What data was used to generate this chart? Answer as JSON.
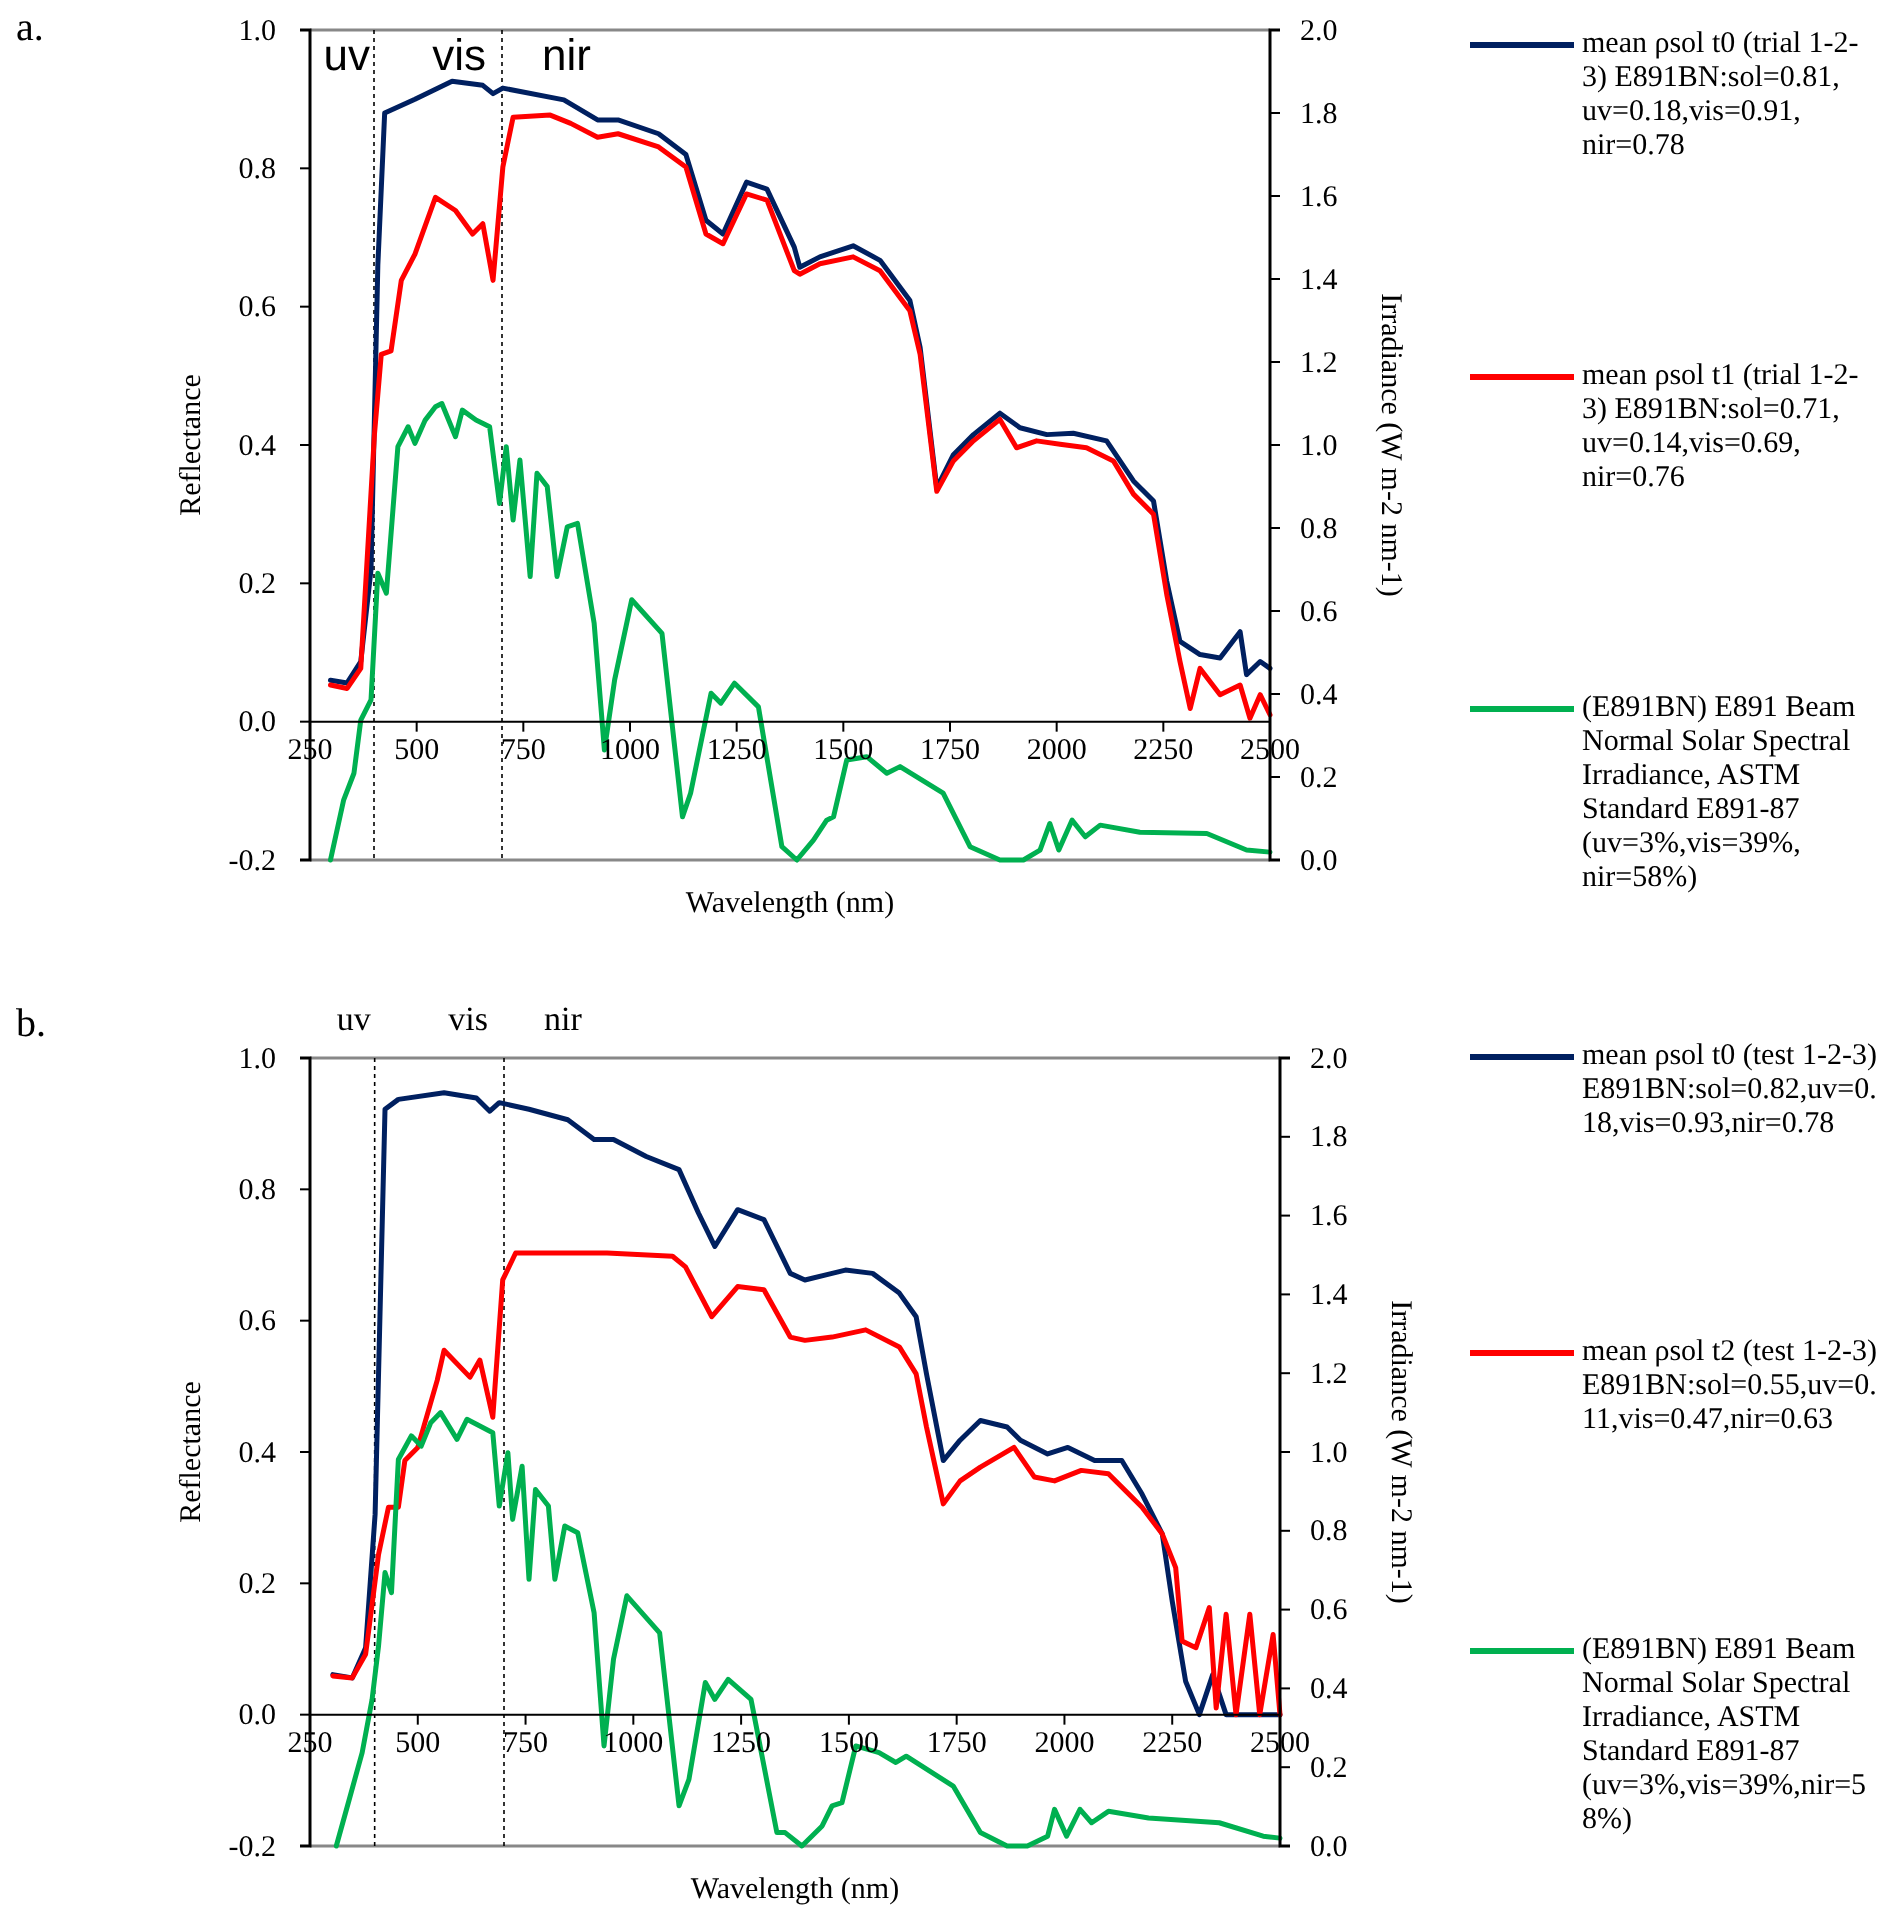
{
  "chart_data": [
    {
      "type": "line",
      "title": "a.",
      "xlabel": "Wavelength (nm)",
      "ylabel": "Reflectance",
      "y2label": "Irradiance (W m-2 nm-1)",
      "xlim": [
        250,
        2500
      ],
      "xticks": [
        250,
        500,
        750,
        1000,
        1250,
        1500,
        1750,
        2000,
        2250,
        2500
      ],
      "ylim": [
        -0.2,
        1.0
      ],
      "yticks": [
        {
          "value": -0.2,
          "label": "-0.2"
        },
        {
          "value": 0,
          "label": "0.0"
        },
        {
          "value": 0.2,
          "label": "0.2"
        },
        {
          "value": 0.4,
          "label": "0.4"
        },
        {
          "value": 0.6,
          "label": "0.6"
        },
        {
          "value": 0.8,
          "label": "0.8"
        },
        {
          "value": 1.0,
          "label": "1.0"
        }
      ],
      "y2lim": [
        0,
        2.0
      ],
      "y2ticks": [
        {
          "value": 0,
          "label": "0.0"
        },
        {
          "value": 0.2,
          "label": "0.2"
        },
        {
          "value": 0.4,
          "label": "0.4"
        },
        {
          "value": 0.6,
          "label": "0.6"
        },
        {
          "value": 0.8,
          "label": "0.8"
        },
        {
          "value": 1.0,
          "label": "1.0"
        },
        {
          "value": 1.2,
          "label": "1.2"
        },
        {
          "value": 1.4,
          "label": "1.4"
        },
        {
          "value": 1.6,
          "label": "1.6"
        },
        {
          "value": 1.8,
          "label": "1.8"
        },
        {
          "value": 2.0,
          "label": "2.0"
        }
      ],
      "grid": false,
      "legend": "right",
      "marker": "none",
      "line_style": "solid",
      "ref_lines": [
        {
          "axis": "x",
          "value": 400,
          "line_style": "dotted"
        },
        {
          "axis": "x",
          "value": 700,
          "line_style": "dotted"
        }
      ],
      "annotations": [
        "uv",
        "vis",
        "nir"
      ],
      "series": [
        {
          "name": "mean ρsol t0 (trial 1-2-3) E891BN:sol=0.81, uv=0.18,vis=0.91, nir=0.78",
          "color": "#002060",
          "x": [
            298,
            337,
            369,
            393,
            409,
            425,
            496,
            583,
            655,
            679,
            702,
            845,
            924,
            972,
            1067,
            1131,
            1178,
            1218,
            1273,
            1321,
            1385,
            1398,
            1445,
            1523,
            1586,
            1656,
            1680,
            1719,
            1758,
            1805,
            1867,
            1914,
            1977,
            2039,
            2117,
            2180,
            2227,
            2258,
            2289,
            2336,
            2383,
            2430,
            2445,
            2477,
            2500
          ],
          "values": [
            0.06,
            0.056,
            0.087,
            0.22,
            0.66,
            0.88,
            0.9,
            0.926,
            0.92,
            0.908,
            0.916,
            0.899,
            0.87,
            0.87,
            0.85,
            0.82,
            0.725,
            0.705,
            0.78,
            0.77,
            0.686,
            0.657,
            0.672,
            0.688,
            0.667,
            0.609,
            0.541,
            0.338,
            0.386,
            0.415,
            0.446,
            0.425,
            0.415,
            0.417,
            0.406,
            0.348,
            0.319,
            0.203,
            0.116,
            0.097,
            0.092,
            0.13,
            0.068,
            0.087,
            0.077
          ]
        },
        {
          "name": "mean ρsol t1 (trial 1-2-3) E891BN:sol=0.71, uv=0.14,vis=0.69, nir=0.76",
          "color": "#ff0000",
          "x": [
            298,
            337,
            369,
            401,
            417,
            440,
            464,
            496,
            544,
            591,
            631,
            655,
            679,
            702,
            726,
            813,
            861,
            924,
            972,
            1067,
            1131,
            1178,
            1218,
            1273,
            1321,
            1385,
            1398,
            1445,
            1523,
            1586,
            1656,
            1680,
            1719,
            1758,
            1805,
            1867,
            1906,
            1953,
            2008,
            2070,
            2133,
            2180,
            2227,
            2258,
            2289,
            2313,
            2336,
            2383,
            2430,
            2453,
            2477,
            2500
          ],
          "values": [
            0.053,
            0.048,
            0.077,
            0.415,
            0.531,
            0.536,
            0.638,
            0.676,
            0.758,
            0.739,
            0.705,
            0.72,
            0.638,
            0.802,
            0.874,
            0.877,
            0.865,
            0.845,
            0.85,
            0.831,
            0.802,
            0.705,
            0.691,
            0.763,
            0.754,
            0.652,
            0.647,
            0.662,
            0.672,
            0.652,
            0.594,
            0.531,
            0.333,
            0.377,
            0.406,
            0.437,
            0.396,
            0.406,
            0.401,
            0.396,
            0.377,
            0.329,
            0.3,
            0.184,
            0.087,
            0.019,
            0.077,
            0.039,
            0.053,
            0.005,
            0.039,
            0.01
          ]
        },
        {
          "name": "(E891BN) E891 Beam Normal Solar Spectral Irradiance, ASTM Standard E891-87 (uv=3%,vis=39%, nir=58%)",
          "color": "#00b050",
          "axis": "y2",
          "x": [
            298,
            329,
            353,
            369,
            393,
            409,
            429,
            456,
            480,
            496,
            520,
            544,
            559,
            591,
            607,
            639,
            671,
            694,
            710,
            726,
            742,
            766,
            782,
            806,
            829,
            853,
            877,
            916,
            940,
            964,
            1004,
            1075,
            1123,
            1142,
            1190,
            1213,
            1245,
            1301,
            1356,
            1391,
            1430,
            1461,
            1477,
            1508,
            1555,
            1602,
            1633,
            1734,
            1797,
            1867,
            1922,
            1961,
            1984,
            2005,
            2036,
            2067,
            2102,
            2195,
            2352,
            2445,
            2500
          ],
          "values": [
            0,
            0.145,
            0.209,
            0.337,
            0.386,
            0.691,
            0.643,
            0.996,
            1.044,
            1.004,
            1.06,
            1.092,
            1.1,
            1.02,
            1.084,
            1.06,
            1.044,
            0.859,
            0.996,
            0.819,
            0.964,
            0.683,
            0.932,
            0.9,
            0.683,
            0.803,
            0.811,
            0.57,
            0.265,
            0.434,
            0.627,
            0.546,
            0.104,
            0.161,
            0.402,
            0.378,
            0.426,
            0.369,
            0.032,
            0,
            0.048,
            0.096,
            0.104,
            0.241,
            0.249,
            0.209,
            0.225,
            0.161,
            0.032,
            0,
            0,
            0.024,
            0.088,
            0.024,
            0.096,
            0.056,
            0.084,
            0.067,
            0.064,
            0.024,
            0.019
          ]
        }
      ]
    },
    {
      "type": "line",
      "title": "b.",
      "xlabel": "Wavelength (nm)",
      "ylabel": "Reflectance",
      "y2label": "Irradiance (W m-2 nm-1)",
      "xlim": [
        250,
        2500
      ],
      "xticks": [
        250,
        500,
        750,
        1000,
        1250,
        1500,
        1750,
        2000,
        2250,
        2500
      ],
      "ylim": [
        -0.2,
        1.0
      ],
      "yticks": [
        {
          "value": -0.2,
          "label": "-0.2"
        },
        {
          "value": 0,
          "label": "0.0"
        },
        {
          "value": 0.2,
          "label": "0.2"
        },
        {
          "value": 0.4,
          "label": "0.4"
        },
        {
          "value": 0.6,
          "label": "0.6"
        },
        {
          "value": 0.8,
          "label": "0.8"
        },
        {
          "value": 1.0,
          "label": "1.0"
        }
      ],
      "y2lim": [
        0,
        2.0
      ],
      "y2ticks": [
        {
          "value": 0,
          "label": "0.0"
        },
        {
          "value": 0.2,
          "label": "0.2"
        },
        {
          "value": 0.4,
          "label": "0.4"
        },
        {
          "value": 0.6,
          "label": "0.6"
        },
        {
          "value": 0.8,
          "label": "0.8"
        },
        {
          "value": 1.0,
          "label": "1.0"
        },
        {
          "value": 1.2,
          "label": "1.2"
        },
        {
          "value": 1.4,
          "label": "1.4"
        },
        {
          "value": 1.6,
          "label": "1.6"
        },
        {
          "value": 1.8,
          "label": "1.8"
        },
        {
          "value": 2.0,
          "label": "2.0"
        }
      ],
      "grid": false,
      "legend": "right",
      "marker": "none",
      "line_style": "solid",
      "ref_lines": [
        {
          "axis": "x",
          "value": 400,
          "line_style": "dotted"
        },
        {
          "axis": "x",
          "value": 700,
          "line_style": "dotted"
        }
      ],
      "annotations": [
        "uv",
        "vis",
        "nir"
      ],
      "series": [
        {
          "name": "mean ρsol t0 (test 1-2-3) E891BN:sol=0.82,uv=0.18,vis=0.93,nir=0.78",
          "color": "#002060",
          "x": [
            303,
            348,
            379,
            401,
            424,
            455,
            561,
            636,
            667,
            689,
            758,
            848,
            909,
            954,
            1030,
            1106,
            1151,
            1189,
            1242,
            1303,
            1364,
            1398,
            1461,
            1492,
            1555,
            1617,
            1656,
            1680,
            1719,
            1758,
            1805,
            1867,
            1898,
            1961,
            2008,
            2070,
            2133,
            2180,
            2227,
            2250,
            2281,
            2313,
            2344,
            2375,
            2430,
            2500
          ],
          "values": [
            0.061,
            0.056,
            0.102,
            0.305,
            0.922,
            0.937,
            0.947,
            0.939,
            0.919,
            0.932,
            0.922,
            0.906,
            0.876,
            0.876,
            0.85,
            0.83,
            0.764,
            0.713,
            0.769,
            0.754,
            0.672,
            0.662,
            0.672,
            0.677,
            0.672,
            0.642,
            0.606,
            0.519,
            0.387,
            0.418,
            0.448,
            0.438,
            0.418,
            0.397,
            0.407,
            0.387,
            0.387,
            0.336,
            0.275,
            0.173,
            0.051,
            0,
            0.061,
            0,
            0,
            0
          ]
        },
        {
          "name": "mean ρsol t2 (test 1-2-3) E891BN:sol=0.55,uv=0.11,vis=0.47,nir=0.63",
          "color": "#ff0000",
          "x": [
            303,
            348,
            379,
            409,
            432,
            455,
            470,
            500,
            545,
            561,
            621,
            644,
            674,
            697,
            727,
            833,
            939,
            1091,
            1121,
            1182,
            1242,
            1303,
            1364,
            1398,
            1461,
            1539,
            1617,
            1656,
            1680,
            1719,
            1758,
            1805,
            1883,
            1930,
            1977,
            2039,
            2102,
            2180,
            2227,
            2258,
            2273,
            2305,
            2336,
            2352,
            2375,
            2398,
            2430,
            2453,
            2484,
            2500
          ],
          "values": [
            0.059,
            0.056,
            0.092,
            0.244,
            0.316,
            0.316,
            0.387,
            0.407,
            0.509,
            0.555,
            0.514,
            0.54,
            0.453,
            0.662,
            0.703,
            0.703,
            0.703,
            0.698,
            0.682,
            0.606,
            0.652,
            0.647,
            0.575,
            0.57,
            0.575,
            0.586,
            0.56,
            0.519,
            0.438,
            0.321,
            0.356,
            0.377,
            0.407,
            0.362,
            0.356,
            0.372,
            0.367,
            0.316,
            0.275,
            0.224,
            0.112,
            0.102,
            0.163,
            0.01,
            0.153,
            0,
            0.153,
            0,
            0.122,
            0
          ]
        },
        {
          "name": "(E891BN) E891 Beam Normal Solar Spectral Irradiance, ASTM Standard E891-87 (uv=3%,vis=39%,nir=58%)",
          "color": "#00b050",
          "axis": "y2",
          "x": [
            311,
            341,
            371,
            394,
            409,
            424,
            439,
            455,
            485,
            508,
            530,
            553,
            591,
            614,
            674,
            689,
            709,
            720,
            742,
            758,
            773,
            803,
            818,
            841,
            871,
            909,
            932,
            954,
            985,
            1061,
            1106,
            1129,
            1167,
            1189,
            1220,
            1273,
            1333,
            1352,
            1391,
            1438,
            1461,
            1484,
            1516,
            1570,
            1609,
            1633,
            1742,
            1805,
            1867,
            1914,
            1961,
            1977,
            2005,
            2036,
            2063,
            2102,
            2195,
            2359,
            2461,
            2500
          ],
          "values": [
            0,
            0.118,
            0.237,
            0.372,
            0.508,
            0.694,
            0.643,
            0.981,
            1.041,
            1.015,
            1.074,
            1.1,
            1.032,
            1.083,
            1.049,
            0.863,
            0.998,
            0.829,
            0.964,
            0.677,
            0.905,
            0.863,
            0.677,
            0.812,
            0.795,
            0.592,
            0.254,
            0.474,
            0.635,
            0.541,
            0.102,
            0.169,
            0.415,
            0.372,
            0.423,
            0.372,
            0.034,
            0.034,
            0,
            0.051,
            0.102,
            0.11,
            0.254,
            0.237,
            0.212,
            0.228,
            0.152,
            0.034,
            0,
            0,
            0.025,
            0.093,
            0.025,
            0.093,
            0.059,
            0.088,
            0.071,
            0.059,
            0.025,
            0.02
          ]
        }
      ]
    }
  ]
}
